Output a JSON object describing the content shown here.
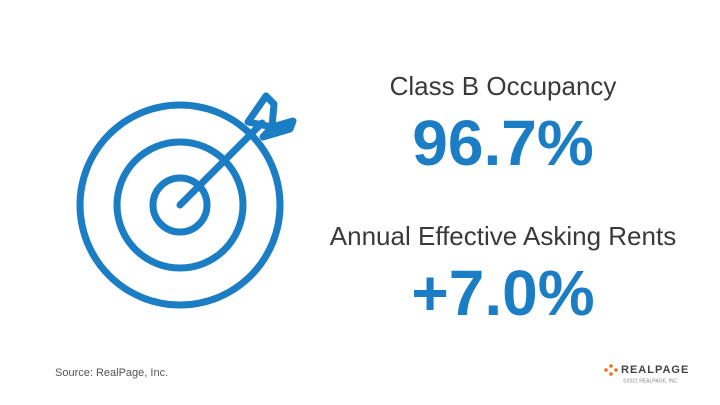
{
  "stats": [
    {
      "label": "Class B Occupancy",
      "value": "96.7%"
    },
    {
      "label": "Annual Effective Asking Rents",
      "value": "+7.0%"
    }
  ],
  "footer": {
    "source": "Source: RealPage, Inc.",
    "logo": "REALPAGE",
    "copyright": "©2021 REALPAGE, INC."
  }
}
